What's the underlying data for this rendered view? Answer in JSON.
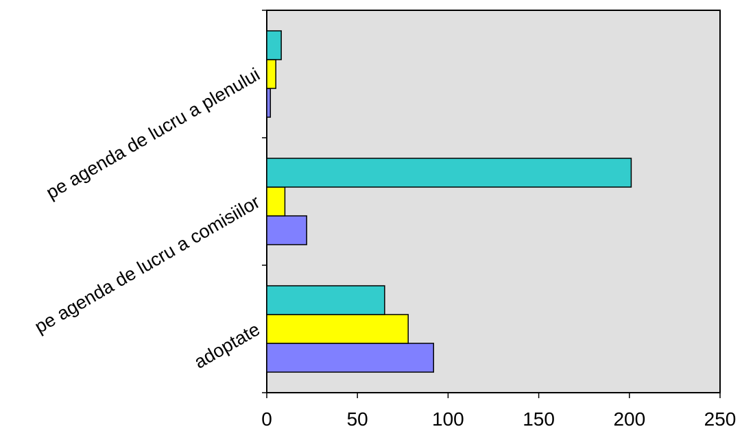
{
  "chart_data": {
    "type": "bar",
    "orientation": "horizontal",
    "title": "",
    "xlabel": "",
    "ylabel": "",
    "categories": [
      "adoptate",
      "pe agenda de lucru a comisiilor",
      "pe agenda de lucru a plenului"
    ],
    "series": [
      {
        "color": "#8080ff",
        "values": [
          92,
          22,
          2
        ]
      },
      {
        "color": "#ffff00",
        "values": [
          78,
          10,
          5
        ]
      },
      {
        "color": "#33cccc",
        "values": [
          65,
          201,
          8
        ]
      }
    ],
    "xlim": [
      0,
      250
    ],
    "xticks": [
      0,
      50,
      100,
      150,
      200,
      250
    ],
    "grid": false,
    "legend": "none",
    "plot_background": "#e0e0e0"
  }
}
